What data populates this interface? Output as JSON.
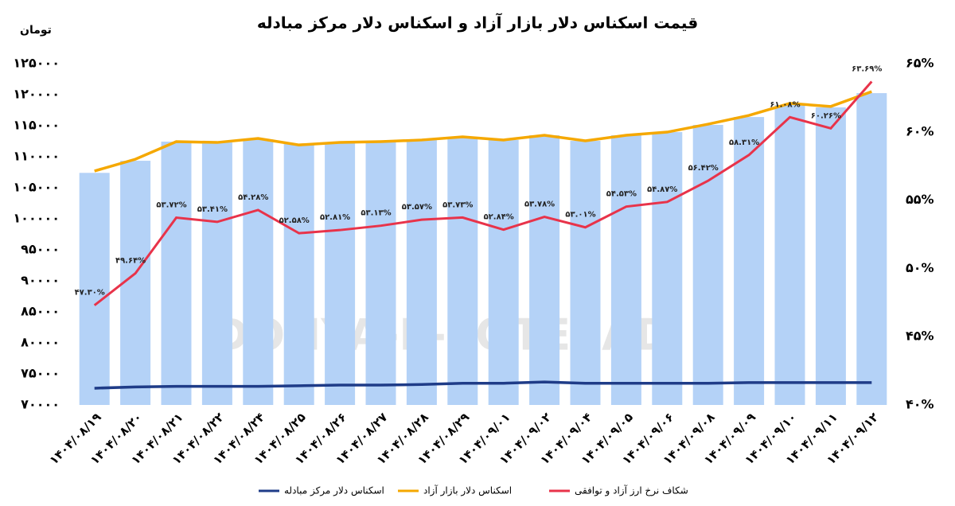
{
  "chart_data": {
    "type": "combo",
    "title": "قیمت اسکناس دلار بازار آزاد و اسکناس دلار مرکز مبادله",
    "y_unit": "تومان",
    "watermark": "DONYA-E-EQTESAD",
    "categories": [
      "۱۴۰۴/۰۸/۱۹",
      "۱۴۰۴/۰۸/۲۰",
      "۱۴۰۴/۰۸/۲۱",
      "۱۴۰۴/۰۸/۲۲",
      "۱۴۰۴/۰۸/۲۴",
      "۱۴۰۴/۰۸/۲۵",
      "۱۴۰۴/۰۸/۲۶",
      "۱۴۰۴/۰۸/۲۷",
      "۱۴۰۴/۰۸/۲۸",
      "۱۴۰۴/۰۸/۲۹",
      "۱۴۰۴/۰۹/۰۱",
      "۱۴۰۴/۰۹/۰۲",
      "۱۴۰۴/۰۹/۰۴",
      "۱۴۰۴/۰۹/۰۵",
      "۱۴۰۴/۰۹/۰۶",
      "۱۴۰۴/۰۹/۰۸",
      "۱۴۰۴/۰۹/۰۹",
      "۱۴۰۴/۰۹/۱۰",
      "۱۴۰۴/۰۹/۱۱",
      "۱۴۰۴/۰۹/۱۲"
    ],
    "bars": {
      "color": "#b4d2f7",
      "values": [
        107400,
        109350,
        112430,
        112300,
        112800,
        112050,
        112300,
        112430,
        112700,
        113200,
        112700,
        113460,
        112560,
        113460,
        113970,
        115130,
        116400,
        118330,
        117950,
        120250
      ]
    },
    "series": [
      {
        "name": "اسکناس دلار مرکز مبادله",
        "color": "#1f3c88",
        "values": [
          72700,
          72900,
          73000,
          73000,
          73000,
          73100,
          73200,
          73200,
          73300,
          73500,
          73500,
          73700,
          73500,
          73500,
          73500,
          73500,
          73600,
          73600,
          73600,
          73600
        ]
      },
      {
        "name": "اسکناس دلار بازار آزاد",
        "color": "#f5a800",
        "values": [
          107700,
          109600,
          112430,
          112300,
          112950,
          111900,
          112300,
          112430,
          112700,
          113200,
          112700,
          113460,
          112560,
          113460,
          113970,
          115250,
          116660,
          118600,
          118100,
          120500
        ]
      },
      {
        "name": "شکاف نرخ ارز آزاد و توافقی",
        "color": "#e8334a",
        "axis": "y2",
        "values": [
          47.3,
          49.64,
          53.72,
          53.41,
          54.28,
          52.58,
          52.81,
          53.13,
          53.57,
          53.73,
          52.84,
          53.78,
          53.01,
          54.53,
          54.87,
          56.42,
          58.31,
          61.08,
          60.26,
          63.69
        ],
        "value_labels": [
          "۴۷.۳۰%",
          "۴۹.۶۴%",
          "۵۳.۷۲%",
          "۵۳.۴۱%",
          "۵۴.۲۸%",
          "۵۲.۵۸%",
          "۵۲.۸۱%",
          "۵۳.۱۳%",
          "۵۳.۵۷%",
          "۵۳.۷۳%",
          "۵۲.۸۴%",
          "۵۳.۷۸%",
          "۵۳.۰۱%",
          "۵۴.۵۳%",
          "۵۴.۸۷%",
          "۵۶.۴۲%",
          "۵۸.۳۱%",
          "۶۱.۰۸%",
          "۶۰.۲۶%",
          "۶۳.۶۹%"
        ]
      }
    ],
    "ylim": [
      70000,
      125000
    ],
    "yticks": [
      {
        "value": 70000,
        "label": "۷۰۰۰۰"
      },
      {
        "value": 75000,
        "label": "۷۵۰۰۰"
      },
      {
        "value": 80000,
        "label": "۸۰۰۰۰"
      },
      {
        "value": 85000,
        "label": "۸۵۰۰۰"
      },
      {
        "value": 90000,
        "label": "۹۰۰۰۰"
      },
      {
        "value": 95000,
        "label": "۹۵۰۰۰"
      },
      {
        "value": 100000,
        "label": "۱۰۰۰۰۰"
      },
      {
        "value": 105000,
        "label": "۱۰۵۰۰۰"
      },
      {
        "value": 110000,
        "label": "۱۱۰۰۰۰"
      },
      {
        "value": 115000,
        "label": "۱۱۵۰۰۰"
      },
      {
        "value": 120000,
        "label": "۱۲۰۰۰۰"
      },
      {
        "value": 125000,
        "label": "۱۲۵۰۰۰"
      }
    ],
    "y2lim": [
      40,
      65
    ],
    "y2ticks": [
      {
        "value": 40,
        "label": "۴۰%"
      },
      {
        "value": 45,
        "label": "۴۵%"
      },
      {
        "value": 50,
        "label": "۵۰%"
      },
      {
        "value": 55,
        "label": "۵۵%"
      },
      {
        "value": 60,
        "label": "۶۰%"
      },
      {
        "value": 65,
        "label": "۶۵%"
      }
    ],
    "legend": "bottom"
  }
}
